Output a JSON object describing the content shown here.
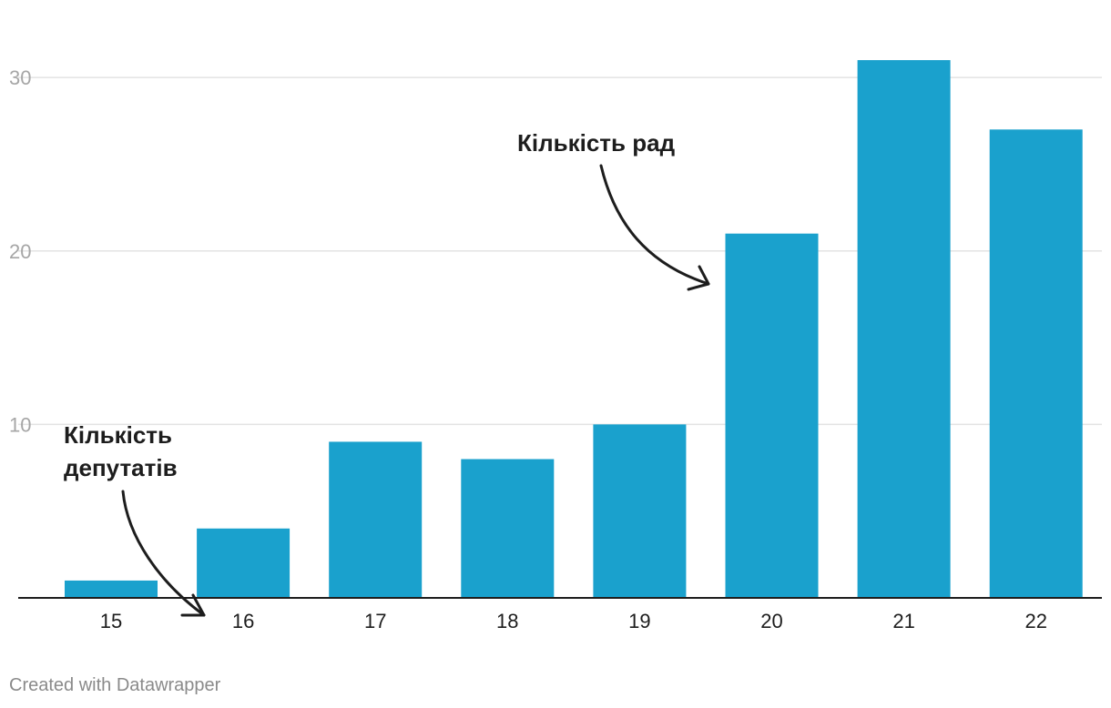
{
  "chart_data": {
    "type": "bar",
    "categories": [
      "15",
      "16",
      "17",
      "18",
      "19",
      "20",
      "21",
      "22"
    ],
    "values": [
      1,
      4,
      9,
      8,
      10,
      21,
      31,
      27
    ],
    "ylim": [
      0,
      32
    ],
    "yticks": [
      10,
      20,
      30
    ],
    "title": "",
    "xlabel": "",
    "ylabel": "",
    "grid": true,
    "bar_color": "#1aa1cd",
    "annotations": [
      {
        "id": "rady",
        "lines": [
          "Кількість рад"
        ]
      },
      {
        "id": "deputaty",
        "lines": [
          "Кількість",
          "депутатів"
        ]
      }
    ]
  },
  "footer": {
    "credit": "Created with Datawrapper"
  }
}
